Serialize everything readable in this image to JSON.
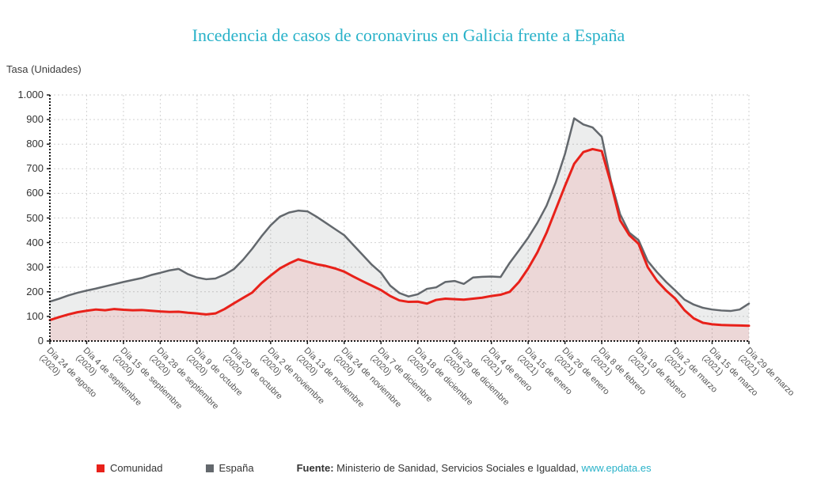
{
  "title": "Incedencia de casos de coronavirus en Galicia frente a España",
  "y_axis_title": "Tasa (Unidades)",
  "legend": [
    {
      "label": "Comunidad",
      "color": "#e8211a"
    },
    {
      "label": "España",
      "color": "#63686d"
    }
  ],
  "footer": {
    "source_label": "Fuente:",
    "source_text": " Ministerio de Sanidad, Servicios Sociales e Igualdad, ",
    "link_text": "www.epdata.es"
  },
  "colors": {
    "title": "#29b2c9",
    "link": "#29b2c9",
    "axis": "#1a1a1a",
    "grid": "#d2d2d2",
    "x_label": "#555555",
    "y_label": "#333333",
    "comunidad_line": "#e8211a",
    "comunidad_fill": "rgba(233,34,27,0.10)",
    "espana_line": "#63686d",
    "espana_fill": "rgba(99,104,109,0.12)"
  },
  "chart_data": {
    "type": "area",
    "title": "Incedencia de casos de coronavirus en Galicia frente a España",
    "ylabel": "Tasa (Unidades)",
    "ylim": [
      0,
      1000
    ],
    "y_ticks": [
      0,
      100,
      200,
      300,
      400,
      500,
      600,
      700,
      800,
      900,
      1000
    ],
    "y_tick_labels": [
      "0",
      "100",
      "200",
      "300",
      "400",
      "500",
      "600",
      "700",
      "800",
      "900",
      "1.000"
    ],
    "grid": true,
    "legend_position": "bottom",
    "tick_every": 4,
    "x_tick_labels": [
      {
        "main": "Día 24 de agosto",
        "year": "(2020)"
      },
      {
        "main": "Día 4 de septiembre",
        "year": "(2020)"
      },
      {
        "main": "Día 15 de septiembre",
        "year": "(2020)"
      },
      {
        "main": "Día 28 de septiembre",
        "year": "(2020)"
      },
      {
        "main": "Día 9 de octubre",
        "year": "(2020)"
      },
      {
        "main": "Día 20 de octubre",
        "year": "(2020)"
      },
      {
        "main": "Día 2 de noviembre",
        "year": "(2020)"
      },
      {
        "main": "Día 13 de noviembre",
        "year": "(2020)"
      },
      {
        "main": "Día 24 de noviembre",
        "year": "(2020)"
      },
      {
        "main": "Día 7 de diciembre",
        "year": "(2020)"
      },
      {
        "main": "Día 18 de diciembre",
        "year": "(2020)"
      },
      {
        "main": "Día 29 de diciembre",
        "year": "(2020)"
      },
      {
        "main": "Día 4 de enero",
        "year": "(2021)"
      },
      {
        "main": "Día 15 de enero",
        "year": "(2021)"
      },
      {
        "main": "Día 26 de enero",
        "year": "(2021)"
      },
      {
        "main": "Día 8 de febrero",
        "year": "(2021)"
      },
      {
        "main": "Día 19 de febrero",
        "year": "(2021)"
      },
      {
        "main": "Día 2 de marzo",
        "year": "(2021)"
      },
      {
        "main": "Día 15 de marzo",
        "year": "(2021)"
      },
      {
        "main": "Día 29 de marzo",
        "year": "(2021)"
      }
    ],
    "series": [
      {
        "name": "España",
        "color": "#63686d",
        "fill": "rgba(99,104,109,0.12)",
        "line_width": 2.5,
        "values": [
          160,
          172,
          185,
          196,
          205,
          213,
          222,
          231,
          240,
          248,
          256,
          268,
          277,
          287,
          293,
          272,
          258,
          251,
          254,
          270,
          292,
          330,
          375,
          425,
          470,
          505,
          522,
          530,
          527,
          505,
          480,
          455,
          430,
          390,
          350,
          310,
          277,
          225,
          195,
          181,
          190,
          212,
          218,
          240,
          244,
          232,
          258,
          261,
          262,
          260,
          318,
          368,
          420,
          480,
          550,
          645,
          760,
          905,
          880,
          868,
          830,
          650,
          515,
          440,
          410,
          325,
          280,
          240,
          205,
          168,
          148,
          135,
          128,
          124,
          122,
          128,
          152
        ]
      },
      {
        "name": "Comunidad",
        "color": "#e8211a",
        "fill": "rgba(233,34,27,0.10)",
        "line_width": 3,
        "values": [
          85,
          97,
          108,
          117,
          123,
          128,
          125,
          130,
          127,
          125,
          126,
          123,
          120,
          118,
          119,
          115,
          112,
          108,
          112,
          130,
          153,
          175,
          197,
          235,
          266,
          295,
          315,
          332,
          322,
          312,
          305,
          295,
          282,
          262,
          243,
          225,
          207,
          183,
          165,
          159,
          160,
          152,
          167,
          172,
          170,
          168,
          172,
          176,
          183,
          188,
          200,
          240,
          295,
          360,
          440,
          535,
          630,
          720,
          768,
          780,
          772,
          640,
          490,
          430,
          395,
          300,
          245,
          205,
          172,
          125,
          92,
          74,
          68,
          65,
          64,
          63,
          62
        ]
      }
    ]
  }
}
